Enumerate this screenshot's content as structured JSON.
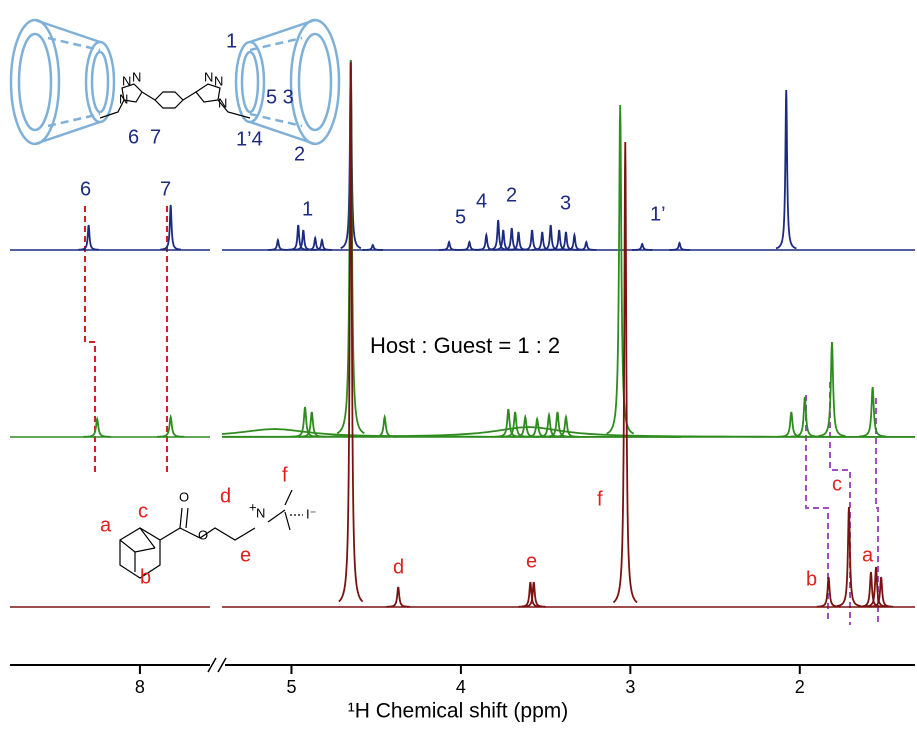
{
  "chart_data": {
    "type": "nmr",
    "xlabel": "¹H Chemical shift (ppm)",
    "annotation": "Host : Guest = 1 : 2",
    "axis_segments": [
      {
        "xlim": [
          8.76,
          7.59
        ],
        "xticks": [
          8
        ]
      },
      {
        "xlim": [
          5.41,
          1.32
        ],
        "xticks": [
          5,
          4,
          3,
          2
        ]
      }
    ],
    "series": [
      {
        "color": "#1c2a80",
        "linewidth": 0.006,
        "labels": [
          "6",
          "7",
          "1",
          "5",
          "4",
          "2",
          "3",
          "1’"
        ],
        "x": [
          8.3,
          7.82,
          5.08,
          4.96,
          4.93,
          4.86,
          4.82,
          4.65,
          4.52,
          4.07,
          3.95,
          3.85,
          3.78,
          3.75,
          3.7,
          3.66,
          3.58,
          3.52,
          3.47,
          3.42,
          3.38,
          3.33,
          3.26,
          2.93,
          2.71,
          2.08
        ],
        "values": [
          25,
          45,
          10,
          25,
          20,
          12,
          10,
          190,
          5,
          8,
          8,
          15,
          30,
          20,
          22,
          18,
          20,
          18,
          25,
          20,
          18,
          15,
          8,
          6,
          7,
          160
        ]
      },
      {
        "color": "#2e8b1e",
        "linewidth": 0.008,
        "x": [
          8.25,
          7.82,
          5.1,
          4.92,
          4.88,
          4.65,
          4.45,
          3.72,
          3.68,
          3.62,
          3.55,
          3.48,
          3.43,
          3.38,
          3.6,
          3.06,
          2.05,
          1.97,
          1.81,
          1.57
        ],
        "values": [
          18,
          20,
          8,
          30,
          25,
          377,
          20,
          28,
          25,
          20,
          18,
          22,
          25,
          20,
          10,
          332,
          25,
          40,
          95,
          50
        ]
      },
      {
        "color": "#7a1212",
        "linewidth": 0.007,
        "labels": [
          "d",
          "e",
          "f",
          "b",
          "c",
          "a"
        ],
        "x": [
          4.65,
          4.37,
          3.59,
          3.57,
          3.03,
          1.83,
          1.71,
          1.58,
          1.55,
          1.52
        ],
        "values": [
          545,
          20,
          25,
          25,
          465,
          30,
          100,
          35,
          40,
          30
        ]
      }
    ],
    "host_structure": {
      "labels": [
        "1",
        "5 3",
        "1’4",
        "6",
        "7",
        "2"
      ],
      "atoms": [
        "N",
        "N",
        "N",
        "N",
        "N",
        "N"
      ]
    },
    "guest_structure": {
      "labels": [
        "a",
        "c",
        "b",
        "d",
        "e",
        "f"
      ],
      "atoms": [
        "O",
        "O",
        "N",
        "+",
        "I⁻"
      ]
    }
  }
}
